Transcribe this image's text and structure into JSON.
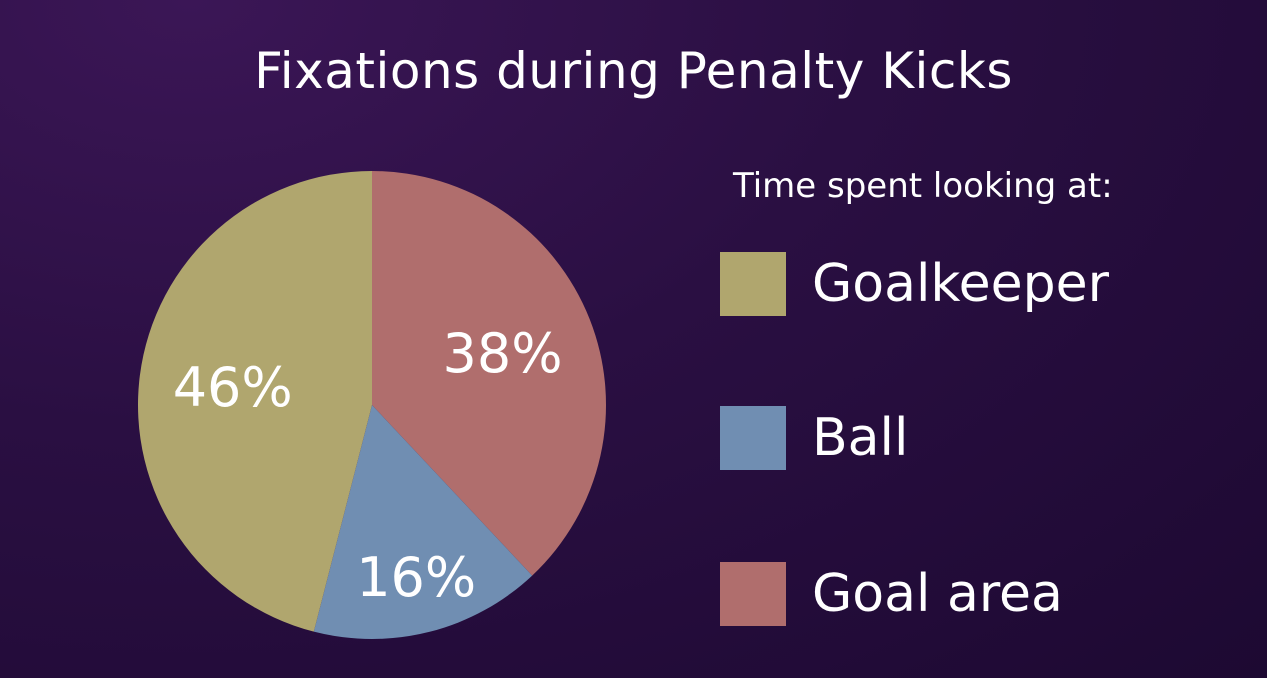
{
  "chart_data": {
    "type": "pie",
    "title": "Fixations during Penalty Kicks",
    "legend_title": "Time spent looking at:",
    "legend_position": "right",
    "slices": [
      {
        "label": "Goalkeeper",
        "value": 46,
        "value_label": "46%",
        "color": "#b0a66e"
      },
      {
        "label": "Ball",
        "value": 16,
        "value_label": "16%",
        "color": "#708eb2"
      },
      {
        "label": "Goal area",
        "value": 38,
        "value_label": "38%",
        "color": "#b06e6d"
      }
    ]
  }
}
